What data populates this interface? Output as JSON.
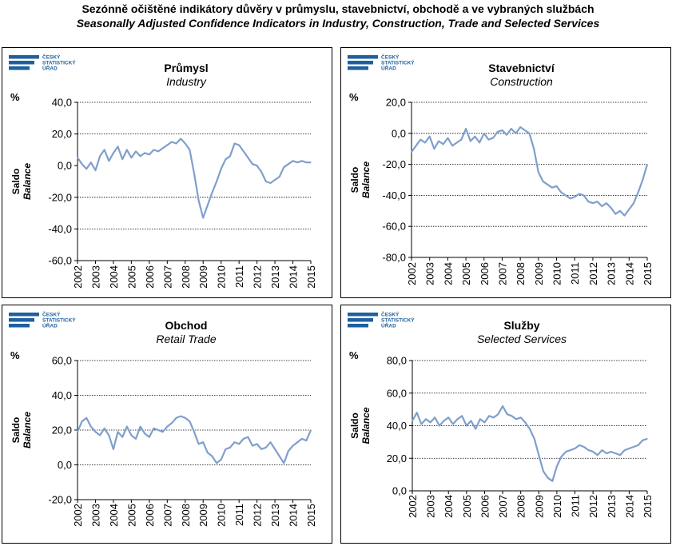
{
  "title": {
    "cz": "Sezónně očištěné indikátory důvěry v průmyslu, stavebnictví, obchodě a ve vybraných službách",
    "en": "Seasonally Adjusted Confidence Indicators in Industry, Construction, Trade and Selected Services"
  },
  "logo_lines": [
    "ČESKÝ",
    "STATISTICKÝ",
    "ÚŘAD"
  ],
  "colors": {
    "line": "#7f9fcc",
    "logo": "#1f5f9e",
    "grid": "#000000"
  },
  "chart_data": [
    {
      "type": "line",
      "title_cz": "Průmysl",
      "title_en": "Industry",
      "unit": "%",
      "ylabel_cz": "Saldo",
      "ylabel_en": "Balance",
      "ylim": [
        -60,
        40
      ],
      "yticks": [
        "40,0",
        "20,0",
        "0,0",
        "-20,0",
        "-40,0",
        "-60,0"
      ],
      "ytick_values": [
        40,
        20,
        0,
        -20,
        -40,
        -60
      ],
      "gridlines": [
        40,
        20,
        -20,
        -40
      ],
      "x_categories": [
        "2002",
        "2003",
        "2004",
        "2005",
        "2006",
        "2007",
        "2008",
        "2009",
        "2010",
        "2011",
        "2012",
        "2013",
        "2014",
        "2015"
      ],
      "x": [
        2002.0,
        2002.25,
        2002.5,
        2002.75,
        2003.0,
        2003.25,
        2003.5,
        2003.75,
        2004.0,
        2004.25,
        2004.5,
        2004.75,
        2005.0,
        2005.25,
        2005.5,
        2005.75,
        2006.0,
        2006.25,
        2006.5,
        2006.75,
        2007.0,
        2007.25,
        2007.5,
        2007.75,
        2008.0,
        2008.25,
        2008.5,
        2008.75,
        2009.0,
        2009.25,
        2009.5,
        2009.75,
        2010.0,
        2010.25,
        2010.5,
        2010.75,
        2011.0,
        2011.25,
        2011.5,
        2011.75,
        2012.0,
        2012.25,
        2012.5,
        2012.75,
        2013.0,
        2013.25,
        2013.5,
        2013.75,
        2014.0,
        2014.25,
        2014.5,
        2014.75,
        2015.0
      ],
      "values": [
        5,
        1,
        -2,
        2,
        -3,
        6,
        10,
        3,
        8,
        12,
        4,
        10,
        5,
        9,
        6,
        8,
        7,
        10,
        9,
        11,
        13,
        15,
        14,
        17,
        14,
        10,
        -5,
        -22,
        -33,
        -25,
        -17,
        -10,
        -2,
        4,
        6,
        14,
        13,
        9,
        5,
        1,
        0,
        -4,
        -10,
        -11,
        -9,
        -7,
        -1,
        1,
        3,
        2,
        3,
        2,
        2
      ]
    },
    {
      "type": "line",
      "title_cz": "Stavebnictví",
      "title_en": "Construction",
      "unit": "%",
      "ylabel_cz": "Saldo",
      "ylabel_en": "Balance",
      "ylim": [
        -80,
        20
      ],
      "yticks": [
        "20,0",
        "0,0",
        "-20,0",
        "-40,0",
        "-60,0",
        "-80,0"
      ],
      "ytick_values": [
        20,
        0,
        -20,
        -40,
        -60,
        -80
      ],
      "gridlines": [
        20,
        0,
        -20,
        -40,
        -60
      ],
      "x_categories": [
        "2002",
        "2003",
        "2004",
        "2005",
        "2006",
        "2007",
        "2008",
        "2009",
        "2010",
        "2011",
        "2012",
        "2013",
        "2014",
        "2015"
      ],
      "x": [
        2002.0,
        2002.25,
        2002.5,
        2002.75,
        2003.0,
        2003.25,
        2003.5,
        2003.75,
        2004.0,
        2004.25,
        2004.5,
        2004.75,
        2005.0,
        2005.25,
        2005.5,
        2005.75,
        2006.0,
        2006.25,
        2006.5,
        2006.75,
        2007.0,
        2007.25,
        2007.5,
        2007.75,
        2008.0,
        2008.25,
        2008.5,
        2008.75,
        2009.0,
        2009.25,
        2009.5,
        2009.75,
        2010.0,
        2010.25,
        2010.5,
        2010.75,
        2011.0,
        2011.25,
        2011.5,
        2011.75,
        2012.0,
        2012.25,
        2012.5,
        2012.75,
        2013.0,
        2013.25,
        2013.5,
        2013.75,
        2014.0,
        2014.25,
        2014.5,
        2014.75,
        2015.0
      ],
      "values": [
        -12,
        -8,
        -4,
        -6,
        -2,
        -10,
        -5,
        -7,
        -3,
        -8,
        -6,
        -4,
        3,
        -5,
        -2,
        -6,
        0,
        -4,
        -3,
        1,
        2,
        -1,
        3,
        0,
        4,
        2,
        0,
        -10,
        -25,
        -31,
        -33,
        -35,
        -34,
        -38,
        -40,
        -42,
        -41,
        -39,
        -40,
        -44,
        -45,
        -44,
        -47,
        -45,
        -48,
        -52,
        -50,
        -53,
        -49,
        -45,
        -38,
        -30,
        -20
      ]
    },
    {
      "type": "line",
      "title_cz": "Obchod",
      "title_en": "Retail Trade",
      "unit": "%",
      "ylabel_cz": "Saldo",
      "ylabel_en": "Balance",
      "ylim": [
        -20,
        60
      ],
      "yticks": [
        "60,0",
        "40,0",
        "20,0",
        "0,0",
        "-20,0"
      ],
      "ytick_values": [
        60,
        40,
        20,
        0,
        -20
      ],
      "gridlines": [
        60,
        40,
        20,
        0
      ],
      "x_categories": [
        "2002",
        "2003",
        "2004",
        "2005",
        "2006",
        "2007",
        "2008",
        "2009",
        "2010",
        "2011",
        "2012",
        "2013",
        "2014",
        "2015"
      ],
      "x": [
        2002.0,
        2002.25,
        2002.5,
        2002.75,
        2003.0,
        2003.25,
        2003.5,
        2003.75,
        2004.0,
        2004.25,
        2004.5,
        2004.75,
        2005.0,
        2005.25,
        2005.5,
        2005.75,
        2006.0,
        2006.25,
        2006.5,
        2006.75,
        2007.0,
        2007.25,
        2007.5,
        2007.75,
        2008.0,
        2008.25,
        2008.5,
        2008.75,
        2009.0,
        2009.25,
        2009.5,
        2009.75,
        2010.0,
        2010.25,
        2010.5,
        2010.75,
        2011.0,
        2011.25,
        2011.5,
        2011.75,
        2012.0,
        2012.25,
        2012.5,
        2012.75,
        2013.0,
        2013.25,
        2013.5,
        2013.75,
        2014.0,
        2014.25,
        2014.5,
        2014.75,
        2015.0
      ],
      "values": [
        19,
        25,
        27,
        22,
        19,
        17,
        21,
        17,
        9,
        19,
        16,
        22,
        17,
        15,
        22,
        18,
        16,
        21,
        20,
        19,
        22,
        24,
        27,
        28,
        27,
        25,
        19,
        12,
        13,
        7,
        5,
        1,
        3,
        9,
        10,
        13,
        12,
        15,
        16,
        11,
        12,
        9,
        10,
        13,
        9,
        5,
        1,
        8,
        11,
        13,
        15,
        14,
        20
      ]
    },
    {
      "type": "line",
      "title_cz": "Služby",
      "title_en": "Selected Services",
      "unit": "%",
      "ylabel_cz": "Saldo",
      "ylabel_en": "Balance",
      "ylim": [
        0,
        80
      ],
      "yticks": [
        "80,0",
        "60,0",
        "40,0",
        "20,0",
        "0,0"
      ],
      "ytick_values": [
        80,
        60,
        40,
        20,
        0
      ],
      "gridlines": [
        80,
        60,
        40,
        20
      ],
      "x_categories": [
        "2002",
        "2003",
        "2004",
        "2005",
        "2006",
        "2007",
        "2008",
        "2009",
        "2010",
        "2011",
        "2012",
        "2013",
        "2014",
        "2015"
      ],
      "x": [
        2002.0,
        2002.25,
        2002.5,
        2002.75,
        2003.0,
        2003.25,
        2003.5,
        2003.75,
        2004.0,
        2004.25,
        2004.5,
        2004.75,
        2005.0,
        2005.25,
        2005.5,
        2005.75,
        2006.0,
        2006.25,
        2006.5,
        2006.75,
        2007.0,
        2007.25,
        2007.5,
        2007.75,
        2008.0,
        2008.25,
        2008.5,
        2008.75,
        2009.0,
        2009.25,
        2009.5,
        2009.75,
        2010.0,
        2010.25,
        2010.5,
        2010.75,
        2011.0,
        2011.25,
        2011.5,
        2011.75,
        2012.0,
        2012.25,
        2012.5,
        2012.75,
        2013.0,
        2013.25,
        2013.5,
        2013.75,
        2014.0,
        2014.25,
        2014.5,
        2014.75,
        2015.0
      ],
      "values": [
        43,
        48,
        41,
        44,
        42,
        45,
        40,
        43,
        45,
        41,
        44,
        46,
        40,
        43,
        38,
        44,
        42,
        46,
        45,
        47,
        52,
        47,
        46,
        44,
        45,
        42,
        38,
        32,
        22,
        12,
        8,
        6,
        15,
        21,
        24,
        25,
        26,
        28,
        27,
        25,
        24,
        22,
        25,
        23,
        24,
        23,
        22,
        25,
        26,
        27,
        28,
        31,
        32
      ]
    }
  ]
}
